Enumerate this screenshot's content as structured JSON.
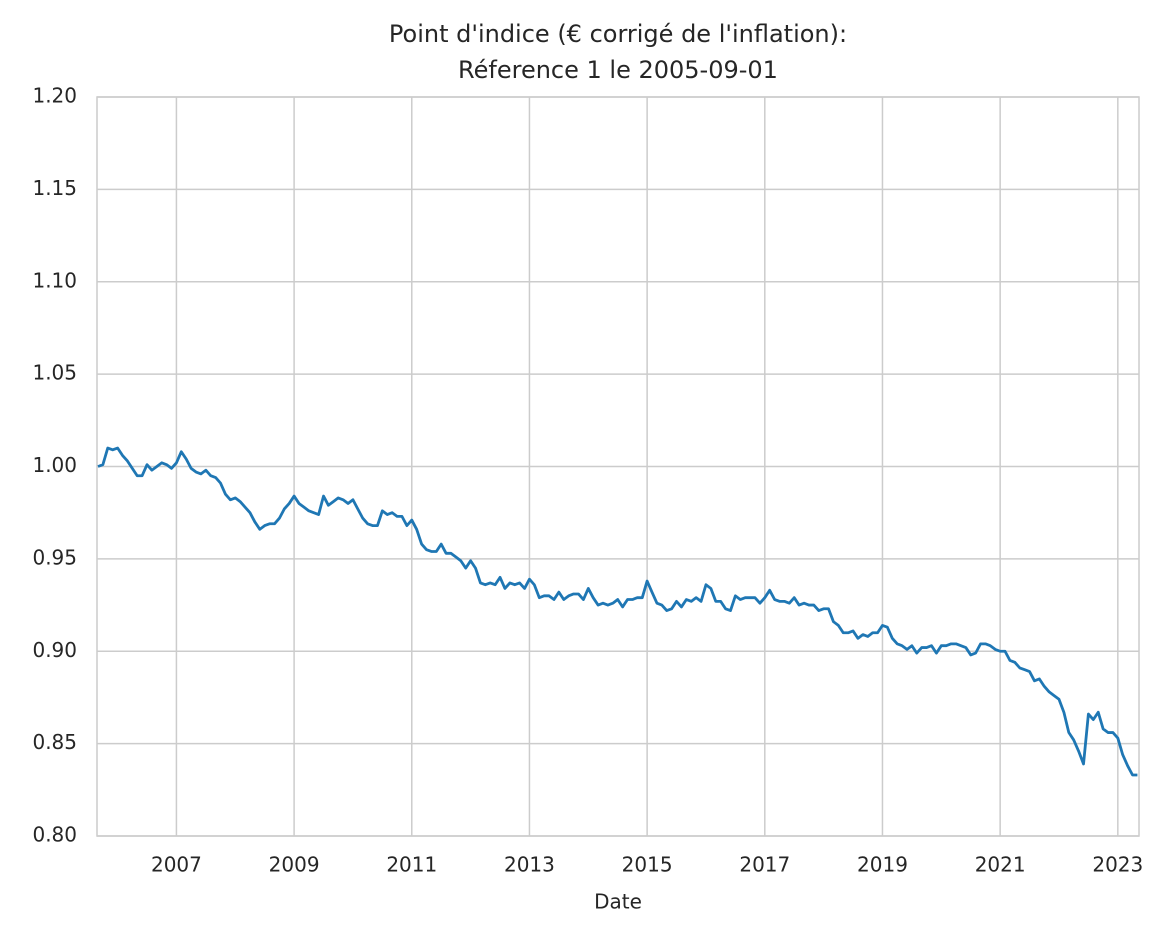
{
  "chart_data": {
    "type": "line",
    "title": "Point d'indice (€ corrigé de l'inflation):",
    "subtitle": "Réference 1 le 2005-09-01",
    "x_label": "Date",
    "grid": true,
    "xlim": [
      2005.65,
      2023.36
    ],
    "xticks": [
      2007,
      2009,
      2011,
      2013,
      2015,
      2017,
      2019,
      2021,
      2023
    ],
    "ylim": [
      0.8,
      1.2
    ],
    "yticks": [
      {
        "value": 0.8,
        "label": "0.80"
      },
      {
        "value": 0.85,
        "label": "0.85"
      },
      {
        "value": 0.9,
        "label": "0.90"
      },
      {
        "value": 0.95,
        "label": "0.95"
      },
      {
        "value": 1.0,
        "label": "1.00"
      },
      {
        "value": 1.05,
        "label": "1.05"
      },
      {
        "value": 1.1,
        "label": "1.10"
      },
      {
        "value": 1.15,
        "label": "1.15"
      },
      {
        "value": 1.2,
        "label": "1.20"
      }
    ],
    "x": [
      2005.667,
      2005.75,
      2005.833,
      2005.917,
      2006,
      2006.083,
      2006.167,
      2006.25,
      2006.333,
      2006.417,
      2006.5,
      2006.583,
      2006.667,
      2006.75,
      2006.833,
      2006.917,
      2007,
      2007.083,
      2007.167,
      2007.25,
      2007.333,
      2007.417,
      2007.5,
      2007.583,
      2007.667,
      2007.75,
      2007.833,
      2007.917,
      2008,
      2008.083,
      2008.167,
      2008.25,
      2008.333,
      2008.417,
      2008.5,
      2008.583,
      2008.667,
      2008.75,
      2008.833,
      2008.917,
      2009,
      2009.083,
      2009.167,
      2009.25,
      2009.333,
      2009.417,
      2009.5,
      2009.583,
      2009.667,
      2009.75,
      2009.833,
      2009.917,
      2010,
      2010.083,
      2010.167,
      2010.25,
      2010.333,
      2010.417,
      2010.5,
      2010.583,
      2010.667,
      2010.75,
      2010.833,
      2010.917,
      2011,
      2011.083,
      2011.167,
      2011.25,
      2011.333,
      2011.417,
      2011.5,
      2011.583,
      2011.667,
      2011.75,
      2011.833,
      2011.917,
      2012,
      2012.083,
      2012.167,
      2012.25,
      2012.333,
      2012.417,
      2012.5,
      2012.583,
      2012.667,
      2012.75,
      2012.833,
      2012.917,
      2013,
      2013.083,
      2013.167,
      2013.25,
      2013.333,
      2013.417,
      2013.5,
      2013.583,
      2013.667,
      2013.75,
      2013.833,
      2013.917,
      2014,
      2014.083,
      2014.167,
      2014.25,
      2014.333,
      2014.417,
      2014.5,
      2014.583,
      2014.667,
      2014.75,
      2014.833,
      2014.917,
      2015,
      2015.083,
      2015.167,
      2015.25,
      2015.333,
      2015.417,
      2015.5,
      2015.583,
      2015.667,
      2015.75,
      2015.833,
      2015.917,
      2016,
      2016.083,
      2016.167,
      2016.25,
      2016.333,
      2016.417,
      2016.5,
      2016.583,
      2016.667,
      2016.75,
      2016.833,
      2016.917,
      2017,
      2017.083,
      2017.167,
      2017.25,
      2017.333,
      2017.417,
      2017.5,
      2017.583,
      2017.667,
      2017.75,
      2017.833,
      2017.917,
      2018,
      2018.083,
      2018.167,
      2018.25,
      2018.333,
      2018.417,
      2018.5,
      2018.583,
      2018.667,
      2018.75,
      2018.833,
      2018.917,
      2019,
      2019.083,
      2019.167,
      2019.25,
      2019.333,
      2019.417,
      2019.5,
      2019.583,
      2019.667,
      2019.75,
      2019.833,
      2019.917,
      2020,
      2020.083,
      2020.167,
      2020.25,
      2020.333,
      2020.417,
      2020.5,
      2020.583,
      2020.667,
      2020.75,
      2020.833,
      2020.917,
      2021,
      2021.083,
      2021.167,
      2021.25,
      2021.333,
      2021.417,
      2021.5,
      2021.583,
      2021.667,
      2021.75,
      2021.833,
      2021.917,
      2022,
      2022.083,
      2022.167,
      2022.25,
      2022.333,
      2022.417,
      2022.5,
      2022.583,
      2022.667,
      2022.75,
      2022.833,
      2022.917,
      2023,
      2023.083,
      2023.167,
      2023.25,
      2023.333
    ],
    "series": [
      {
        "color": "#1f77b4",
        "values": [
          1.0,
          1.001,
          1.01,
          1.009,
          1.01,
          1.006,
          1.003,
          0.999,
          0.995,
          0.995,
          1.001,
          0.998,
          1.0,
          1.002,
          1.001,
          0.999,
          1.002,
          1.008,
          1.004,
          0.999,
          0.997,
          0.996,
          0.998,
          0.995,
          0.994,
          0.991,
          0.985,
          0.982,
          0.983,
          0.981,
          0.978,
          0.975,
          0.97,
          0.966,
          0.968,
          0.969,
          0.969,
          0.972,
          0.977,
          0.98,
          0.984,
          0.98,
          0.978,
          0.976,
          0.975,
          0.974,
          0.984,
          0.979,
          0.981,
          0.983,
          0.982,
          0.98,
          0.982,
          0.977,
          0.972,
          0.969,
          0.968,
          0.968,
          0.976,
          0.974,
          0.975,
          0.973,
          0.973,
          0.968,
          0.971,
          0.966,
          0.958,
          0.955,
          0.954,
          0.954,
          0.958,
          0.953,
          0.953,
          0.951,
          0.949,
          0.945,
          0.949,
          0.945,
          0.937,
          0.936,
          0.937,
          0.936,
          0.94,
          0.934,
          0.937,
          0.936,
          0.937,
          0.934,
          0.939,
          0.936,
          0.929,
          0.93,
          0.93,
          0.928,
          0.932,
          0.928,
          0.93,
          0.931,
          0.931,
          0.928,
          0.934,
          0.929,
          0.925,
          0.926,
          0.925,
          0.926,
          0.928,
          0.924,
          0.928,
          0.928,
          0.929,
          0.929,
          0.938,
          0.932,
          0.926,
          0.925,
          0.922,
          0.923,
          0.927,
          0.924,
          0.928,
          0.927,
          0.929,
          0.927,
          0.936,
          0.934,
          0.927,
          0.927,
          0.923,
          0.922,
          0.93,
          0.928,
          0.929,
          0.929,
          0.929,
          0.926,
          0.929,
          0.933,
          0.928,
          0.927,
          0.927,
          0.926,
          0.929,
          0.925,
          0.926,
          0.925,
          0.925,
          0.922,
          0.923,
          0.923,
          0.916,
          0.914,
          0.91,
          0.91,
          0.911,
          0.907,
          0.909,
          0.908,
          0.91,
          0.91,
          0.914,
          0.913,
          0.907,
          0.904,
          0.903,
          0.901,
          0.903,
          0.899,
          0.902,
          0.902,
          0.903,
          0.899,
          0.903,
          0.903,
          0.904,
          0.904,
          0.903,
          0.902,
          0.898,
          0.899,
          0.904,
          0.904,
          0.903,
          0.901,
          0.9,
          0.9,
          0.895,
          0.894,
          0.891,
          0.89,
          0.889,
          0.884,
          0.885,
          0.881,
          0.878,
          0.876,
          0.874,
          0.867,
          0.856,
          0.852,
          0.846,
          0.839,
          0.866,
          0.863,
          0.867,
          0.858,
          0.856,
          0.856,
          0.853,
          0.844,
          0.838,
          0.833,
          0.833
        ]
      }
    ]
  }
}
